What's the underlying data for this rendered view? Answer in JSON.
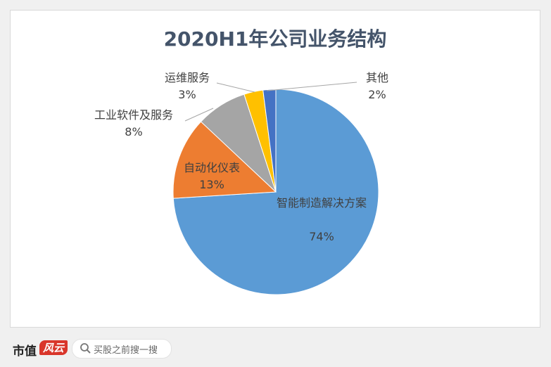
{
  "chart_data": {
    "type": "pie",
    "title": "2020H1年公司业务结构",
    "categories": [
      "智能制造解决方案",
      "自动化仪表",
      "工业软件及服务",
      "运维服务",
      "其他"
    ],
    "values": [
      74,
      13,
      8,
      3,
      2
    ],
    "value_labels": [
      "74%",
      "13%",
      "8%",
      "3%",
      "2%"
    ],
    "colors": [
      "#5b9bd5",
      "#ed7d31",
      "#a5a5a5",
      "#ffc000",
      "#4472c4"
    ]
  },
  "footer": {
    "brand": "市值",
    "brand_mark": "风云",
    "search_placeholder": "买股之前搜一搜"
  }
}
